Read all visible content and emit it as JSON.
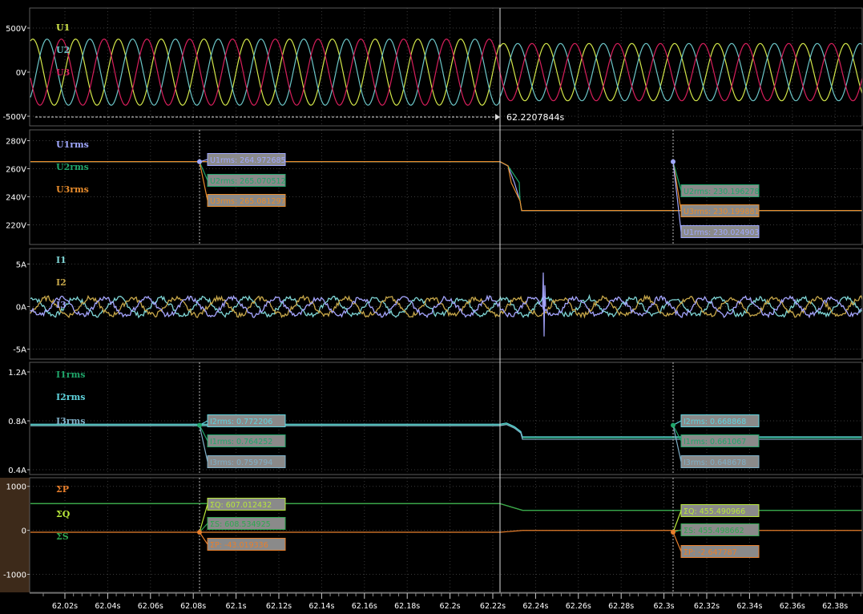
{
  "colors": {
    "background": "#000000",
    "panel_border": "#5a5a5a",
    "grid": "#3a3a3a",
    "axis_text": "#ffffff",
    "bottom_panel_bg": "#3d2a1a",
    "cursor": "#dddddd",
    "u1": "#d4e84a",
    "u2": "#6cc7c9",
    "u3": "#d81f5c",
    "u1rms": "#a0a8ff",
    "u2rms": "#1fa66a",
    "u3rms": "#e88c2c",
    "i1": "#7fd6d6",
    "i2": "#c8a84a",
    "i3": "#a6a6ff",
    "i1rms": "#1fa66a",
    "i2rms": "#5fd3dd",
    "i3rms": "#7fb0c8",
    "sp": "#e87f2c",
    "sq": "#b8e83a",
    "ss": "#2fa850"
  },
  "cursor_label": "62.2207844s",
  "x_ticks": [
    "62.02s",
    "62.04s",
    "62.06s",
    "62.08s",
    "62.1s",
    "62.12s",
    "62.14s",
    "62.16s",
    "62.18s",
    "62.2s",
    "62.22s",
    "62.24s",
    "62.26s",
    "62.28s",
    "62.3s",
    "62.32s",
    "62.34s",
    "62.36s",
    "62.38s"
  ],
  "chart_data": [
    {
      "type": "line",
      "panel": "voltage",
      "y_ticks": [
        "500V",
        "0V",
        "-500V"
      ],
      "ylim": [
        -500,
        500
      ],
      "series": [
        {
          "name": "U1",
          "amplitude_before": 375,
          "amplitude_after": 325,
          "frequency_hz": 50
        },
        {
          "name": "U2",
          "amplitude_before": 375,
          "amplitude_after": 325,
          "frequency_hz": 50
        },
        {
          "name": "U3",
          "amplitude_before": 375,
          "amplitude_after": 325,
          "frequency_hz": 50
        }
      ],
      "step_time_s": 62.2207844
    },
    {
      "type": "line",
      "panel": "voltage_rms",
      "y_ticks": [
        "280V",
        "260V",
        "240V",
        "220V"
      ],
      "ylim": [
        210,
        282
      ],
      "series": [
        {
          "name": "U1rms",
          "before": 264.972685,
          "after": 230.024903
        },
        {
          "name": "U2rms",
          "before": 265.070512,
          "after": 230.196278
        },
        {
          "name": "U3rms",
          "before": 265.081297,
          "after": 230.199881
        }
      ],
      "markers": [
        {
          "x": "62.08s",
          "labels": [
            "U1rms: 264.972685",
            "U2rms: 265.070512",
            "U3rms: 265.081297"
          ]
        },
        {
          "x": "62.3s",
          "labels": [
            "U2rms: 230.196278",
            "U3rms: 230.199881",
            "U1rms: 230.024903"
          ]
        }
      ]
    },
    {
      "type": "line",
      "panel": "current",
      "y_ticks": [
        "5A",
        "0A",
        "-5A"
      ],
      "ylim": [
        -5.5,
        5.5
      ],
      "series": [
        {
          "name": "I1",
          "amplitude": 1.0
        },
        {
          "name": "I2",
          "amplitude": 1.0
        },
        {
          "name": "I3",
          "amplitude": 1.0
        }
      ]
    },
    {
      "type": "line",
      "panel": "current_rms",
      "y_ticks": [
        "1.2A",
        "0.8A",
        "0.4A"
      ],
      "ylim": [
        0.4,
        1.2
      ],
      "series": [
        {
          "name": "I1rms",
          "before": 0.764252,
          "after": 0.661067
        },
        {
          "name": "I2rms",
          "before": 0.772206,
          "after": 0.668868
        },
        {
          "name": "I3rms",
          "before": 0.759794,
          "after": 0.648678
        }
      ],
      "markers": [
        {
          "x": "62.08s",
          "labels": [
            "I2rms: 0.772206",
            "I1rms: 0.764252",
            "I3rms: 0.759794"
          ]
        },
        {
          "x": "62.3s",
          "labels": [
            "I2rms: 0.668868",
            "I1rms: 0.661067",
            "I3rms: 0.648678"
          ]
        }
      ]
    },
    {
      "type": "line",
      "panel": "power",
      "y_ticks": [
        "1000",
        "0",
        "-1000"
      ],
      "ylim": [
        -1300,
        1050
      ],
      "series": [
        {
          "name": "ΣP",
          "before": -43.019336,
          "after": -2.647787
        },
        {
          "name": "ΣQ",
          "before": 607.012432,
          "after": 455.490966
        },
        {
          "name": "ΣS",
          "before": 608.534925,
          "after": 455.498662
        }
      ],
      "markers": [
        {
          "x": "62.08s",
          "labels": [
            "ΣQ: 607.012432",
            "ΣS: 608.534925",
            "ΣP: -43.019336"
          ]
        },
        {
          "x": "62.3s",
          "labels": [
            "ΣQ: 455.490966",
            "ΣS: 455.498662",
            "ΣP: -2.647787"
          ]
        }
      ]
    }
  ]
}
